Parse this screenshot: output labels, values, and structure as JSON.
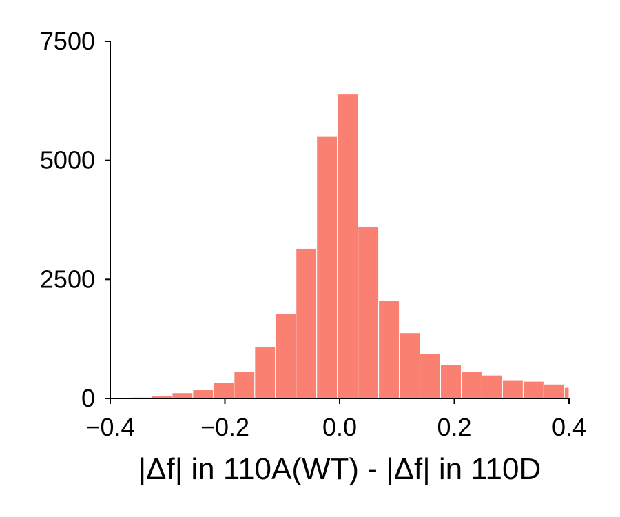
{
  "chart_data": {
    "type": "bar",
    "subtype": "histogram",
    "title": "",
    "xlabel": "|Δf| in 110A(WT) - |Δf| in 110D",
    "ylabel": "",
    "xlim": [
      -0.4,
      0.4
    ],
    "ylim": [
      0,
      7500
    ],
    "xticks": [
      -0.4,
      -0.2,
      0.0,
      0.2,
      0.4
    ],
    "xtick_labels": [
      "−0.4",
      "−0.2",
      "0.0",
      "0.2",
      "0.4"
    ],
    "yticks": [
      0,
      2500,
      5000,
      7500
    ],
    "ytick_labels": [
      "0",
      "2500",
      "5000",
      "7500"
    ],
    "bin_width": 0.036,
    "bin_edges": [
      -0.4,
      -0.364,
      -0.328,
      -0.292,
      -0.256,
      -0.22,
      -0.184,
      -0.148,
      -0.112,
      -0.076,
      -0.04,
      -0.004,
      0.032,
      0.068,
      0.104,
      0.14,
      0.176,
      0.212,
      0.248,
      0.284,
      0.32,
      0.356,
      0.392,
      0.4
    ],
    "values": [
      20,
      25,
      50,
      120,
      180,
      340,
      560,
      1080,
      1780,
      3150,
      5500,
      6390,
      3610,
      2060,
      1380,
      940,
      710,
      570,
      490,
      390,
      360,
      300,
      230
    ],
    "bar_color": "#fa8072",
    "bar_edge_color": "#ffffff",
    "grid": false,
    "legend": "none",
    "spines": "left-bottom"
  }
}
